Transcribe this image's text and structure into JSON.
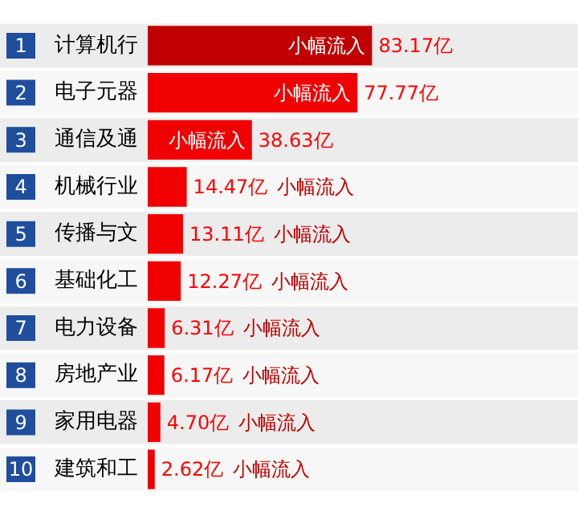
{
  "chart_data": {
    "type": "bar",
    "orientation": "horizontal",
    "categories": [
      "计算机行",
      "电子元器",
      "通信及通",
      "机械行业",
      "传播与文",
      "基础化工",
      "电力设备",
      "房地产业",
      "家用电器",
      "建筑和工"
    ],
    "values": [
      83.17,
      77.77,
      38.63,
      14.47,
      13.11,
      12.27,
      6.31,
      6.17,
      4.7,
      2.62
    ],
    "colors": [
      "#c00000",
      "#f00000",
      "#f00000",
      "#f00000",
      "#f00000",
      "#f00000",
      "#f00000",
      "#f00000",
      "#f00000",
      "#f00000"
    ],
    "value_labels": [
      "83.17亿",
      "77.77亿",
      "38.63亿",
      "14.47亿",
      "13.11亿",
      "12.27亿",
      "6.31亿",
      "6.17亿",
      "4.70亿",
      "2.62亿"
    ],
    "annotations": [
      "1",
      "2",
      "3",
      "4",
      "5",
      "6",
      "7",
      "8",
      "9",
      "10",
      "小幅流入",
      "小幅流入",
      "小幅流入",
      "小幅流入",
      "小幅流入",
      "小幅流入",
      "小幅流入",
      "小幅流入",
      "小幅流入",
      "小幅流入"
    ],
    "grid": false,
    "legend": false
  }
}
